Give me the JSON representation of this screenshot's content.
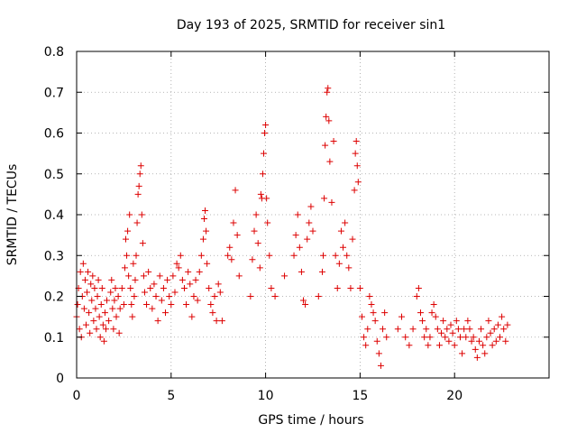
{
  "chart_data": {
    "type": "scatter",
    "title": "Day 193 of 2025, SRMTID for receiver sin1",
    "xlabel": "GPS time / hours",
    "ylabel": "SRMTID / TECUs",
    "xlim": [
      0,
      25
    ],
    "ylim": [
      0,
      0.8
    ],
    "x_ticks": [
      0,
      5,
      10,
      15,
      20
    ],
    "y_ticks": [
      0,
      0.1,
      0.2,
      0.3,
      0.4,
      0.5,
      0.6,
      0.7,
      0.8
    ],
    "grid": true,
    "marker": "+",
    "series_color": "#dd0000",
    "series": [
      {
        "name": "sin1",
        "points": [
          [
            0.0,
            0.15
          ],
          [
            0.05,
            0.18
          ],
          [
            0.1,
            0.22
          ],
          [
            0.15,
            0.12
          ],
          [
            0.2,
            0.26
          ],
          [
            0.25,
            0.1
          ],
          [
            0.3,
            0.2
          ],
          [
            0.35,
            0.28
          ],
          [
            0.4,
            0.17
          ],
          [
            0.45,
            0.24
          ],
          [
            0.5,
            0.13
          ],
          [
            0.55,
            0.21
          ],
          [
            0.6,
            0.26
          ],
          [
            0.65,
            0.16
          ],
          [
            0.7,
            0.11
          ],
          [
            0.75,
            0.23
          ],
          [
            0.8,
            0.19
          ],
          [
            0.85,
            0.25
          ],
          [
            0.9,
            0.14
          ],
          [
            0.95,
            0.22
          ],
          [
            1.0,
            0.17
          ],
          [
            1.05,
            0.12
          ],
          [
            1.1,
            0.2
          ],
          [
            1.15,
            0.24
          ],
          [
            1.2,
            0.15
          ],
          [
            1.25,
            0.1
          ],
          [
            1.3,
            0.18
          ],
          [
            1.35,
            0.22
          ],
          [
            1.4,
            0.13
          ],
          [
            1.45,
            0.09
          ],
          [
            1.5,
            0.16
          ],
          [
            1.55,
            0.12
          ],
          [
            1.6,
            0.19
          ],
          [
            1.7,
            0.14
          ],
          [
            1.8,
            0.21
          ],
          [
            1.85,
            0.24
          ],
          [
            1.9,
            0.17
          ],
          [
            1.95,
            0.12
          ],
          [
            2.0,
            0.19
          ],
          [
            2.05,
            0.22
          ],
          [
            2.1,
            0.15
          ],
          [
            2.2,
            0.2
          ],
          [
            2.25,
            0.11
          ],
          [
            2.3,
            0.17
          ],
          [
            2.4,
            0.22
          ],
          [
            2.5,
            0.18
          ],
          [
            2.55,
            0.27
          ],
          [
            2.6,
            0.34
          ],
          [
            2.65,
            0.3
          ],
          [
            2.7,
            0.36
          ],
          [
            2.75,
            0.25
          ],
          [
            2.8,
            0.4
          ],
          [
            2.85,
            0.22
          ],
          [
            2.9,
            0.18
          ],
          [
            2.95,
            0.15
          ],
          [
            3.0,
            0.28
          ],
          [
            3.05,
            0.2
          ],
          [
            3.1,
            0.24
          ],
          [
            3.15,
            0.3
          ],
          [
            3.2,
            0.38
          ],
          [
            3.25,
            0.45
          ],
          [
            3.3,
            0.47
          ],
          [
            3.35,
            0.5
          ],
          [
            3.4,
            0.52
          ],
          [
            3.45,
            0.4
          ],
          [
            3.5,
            0.33
          ],
          [
            3.55,
            0.25
          ],
          [
            3.6,
            0.21
          ],
          [
            3.7,
            0.18
          ],
          [
            3.8,
            0.26
          ],
          [
            3.9,
            0.22
          ],
          [
            4.0,
            0.17
          ],
          [
            4.1,
            0.23
          ],
          [
            4.2,
            0.2
          ],
          [
            4.3,
            0.14
          ],
          [
            4.4,
            0.25
          ],
          [
            4.5,
            0.19
          ],
          [
            4.6,
            0.22
          ],
          [
            4.7,
            0.16
          ],
          [
            4.8,
            0.24
          ],
          [
            4.9,
            0.2
          ],
          [
            5.0,
            0.18
          ],
          [
            5.1,
            0.25
          ],
          [
            5.2,
            0.21
          ],
          [
            5.3,
            0.28
          ],
          [
            5.4,
            0.27
          ],
          [
            5.5,
            0.3
          ],
          [
            5.6,
            0.24
          ],
          [
            5.7,
            0.22
          ],
          [
            5.8,
            0.18
          ],
          [
            5.9,
            0.26
          ],
          [
            6.0,
            0.23
          ],
          [
            6.1,
            0.15
          ],
          [
            6.2,
            0.2
          ],
          [
            6.3,
            0.24
          ],
          [
            6.4,
            0.19
          ],
          [
            6.5,
            0.26
          ],
          [
            6.6,
            0.3
          ],
          [
            6.7,
            0.34
          ],
          [
            6.75,
            0.39
          ],
          [
            6.8,
            0.41
          ],
          [
            6.85,
            0.36
          ],
          [
            6.9,
            0.28
          ],
          [
            7.0,
            0.22
          ],
          [
            7.1,
            0.18
          ],
          [
            7.2,
            0.16
          ],
          [
            7.3,
            0.2
          ],
          [
            7.4,
            0.14
          ],
          [
            7.5,
            0.23
          ],
          [
            7.6,
            0.21
          ],
          [
            7.7,
            0.14
          ],
          [
            8.0,
            0.3
          ],
          [
            8.1,
            0.32
          ],
          [
            8.2,
            0.29
          ],
          [
            8.3,
            0.38
          ],
          [
            8.4,
            0.46
          ],
          [
            8.5,
            0.35
          ],
          [
            8.6,
            0.25
          ],
          [
            9.2,
            0.2
          ],
          [
            9.3,
            0.29
          ],
          [
            9.4,
            0.36
          ],
          [
            9.5,
            0.4
          ],
          [
            9.6,
            0.33
          ],
          [
            9.7,
            0.27
          ],
          [
            9.75,
            0.45
          ],
          [
            9.8,
            0.44
          ],
          [
            9.85,
            0.5
          ],
          [
            9.9,
            0.55
          ],
          [
            9.95,
            0.6
          ],
          [
            10.0,
            0.62
          ],
          [
            10.05,
            0.44
          ],
          [
            10.1,
            0.38
          ],
          [
            10.2,
            0.3
          ],
          [
            10.3,
            0.22
          ],
          [
            10.5,
            0.2
          ],
          [
            11.0,
            0.25
          ],
          [
            11.5,
            0.3
          ],
          [
            11.6,
            0.35
          ],
          [
            11.7,
            0.4
          ],
          [
            11.8,
            0.32
          ],
          [
            11.9,
            0.26
          ],
          [
            12.0,
            0.19
          ],
          [
            12.1,
            0.18
          ],
          [
            12.2,
            0.34
          ],
          [
            12.3,
            0.38
          ],
          [
            12.4,
            0.42
          ],
          [
            12.5,
            0.36
          ],
          [
            12.8,
            0.2
          ],
          [
            13.0,
            0.26
          ],
          [
            13.05,
            0.3
          ],
          [
            13.1,
            0.44
          ],
          [
            13.15,
            0.57
          ],
          [
            13.2,
            0.64
          ],
          [
            13.25,
            0.7
          ],
          [
            13.3,
            0.71
          ],
          [
            13.35,
            0.63
          ],
          [
            13.4,
            0.53
          ],
          [
            13.5,
            0.43
          ],
          [
            13.6,
            0.58
          ],
          [
            13.7,
            0.3
          ],
          [
            13.8,
            0.22
          ],
          [
            13.9,
            0.28
          ],
          [
            14.0,
            0.36
          ],
          [
            14.1,
            0.32
          ],
          [
            14.2,
            0.38
          ],
          [
            14.3,
            0.3
          ],
          [
            14.4,
            0.27
          ],
          [
            14.5,
            0.22
          ],
          [
            14.6,
            0.34
          ],
          [
            14.7,
            0.46
          ],
          [
            14.75,
            0.55
          ],
          [
            14.8,
            0.58
          ],
          [
            14.85,
            0.52
          ],
          [
            14.9,
            0.48
          ],
          [
            15.0,
            0.22
          ],
          [
            15.1,
            0.15
          ],
          [
            15.2,
            0.1
          ],
          [
            15.3,
            0.08
          ],
          [
            15.4,
            0.12
          ],
          [
            15.5,
            0.2
          ],
          [
            15.6,
            0.18
          ],
          [
            15.7,
            0.16
          ],
          [
            15.8,
            0.14
          ],
          [
            15.9,
            0.09
          ],
          [
            16.0,
            0.06
          ],
          [
            16.1,
            0.03
          ],
          [
            16.2,
            0.12
          ],
          [
            16.3,
            0.16
          ],
          [
            16.4,
            0.1
          ],
          [
            17.0,
            0.12
          ],
          [
            17.2,
            0.15
          ],
          [
            17.4,
            0.1
          ],
          [
            17.6,
            0.08
          ],
          [
            17.8,
            0.12
          ],
          [
            18.0,
            0.2
          ],
          [
            18.1,
            0.22
          ],
          [
            18.2,
            0.16
          ],
          [
            18.3,
            0.14
          ],
          [
            18.4,
            0.1
          ],
          [
            18.5,
            0.12
          ],
          [
            18.6,
            0.08
          ],
          [
            18.7,
            0.1
          ],
          [
            18.8,
            0.16
          ],
          [
            18.9,
            0.18
          ],
          [
            19.0,
            0.15
          ],
          [
            19.1,
            0.12
          ],
          [
            19.2,
            0.08
          ],
          [
            19.3,
            0.11
          ],
          [
            19.4,
            0.14
          ],
          [
            19.5,
            0.1
          ],
          [
            19.6,
            0.12
          ],
          [
            19.7,
            0.09
          ],
          [
            19.8,
            0.13
          ],
          [
            19.9,
            0.11
          ],
          [
            20.0,
            0.08
          ],
          [
            20.1,
            0.14
          ],
          [
            20.2,
            0.12
          ],
          [
            20.3,
            0.1
          ],
          [
            20.4,
            0.06
          ],
          [
            20.5,
            0.12
          ],
          [
            20.6,
            0.1
          ],
          [
            20.7,
            0.14
          ],
          [
            20.8,
            0.12
          ],
          [
            20.9,
            0.09
          ],
          [
            21.0,
            0.1
          ],
          [
            21.1,
            0.07
          ],
          [
            21.2,
            0.05
          ],
          [
            21.3,
            0.09
          ],
          [
            21.4,
            0.12
          ],
          [
            21.5,
            0.08
          ],
          [
            21.6,
            0.06
          ],
          [
            21.7,
            0.1
          ],
          [
            21.8,
            0.14
          ],
          [
            21.9,
            0.11
          ],
          [
            22.0,
            0.08
          ],
          [
            22.1,
            0.12
          ],
          [
            22.2,
            0.09
          ],
          [
            22.3,
            0.13
          ],
          [
            22.4,
            0.1
          ],
          [
            22.5,
            0.15
          ],
          [
            22.6,
            0.12
          ],
          [
            22.7,
            0.09
          ],
          [
            22.8,
            0.13
          ]
        ]
      }
    ]
  }
}
